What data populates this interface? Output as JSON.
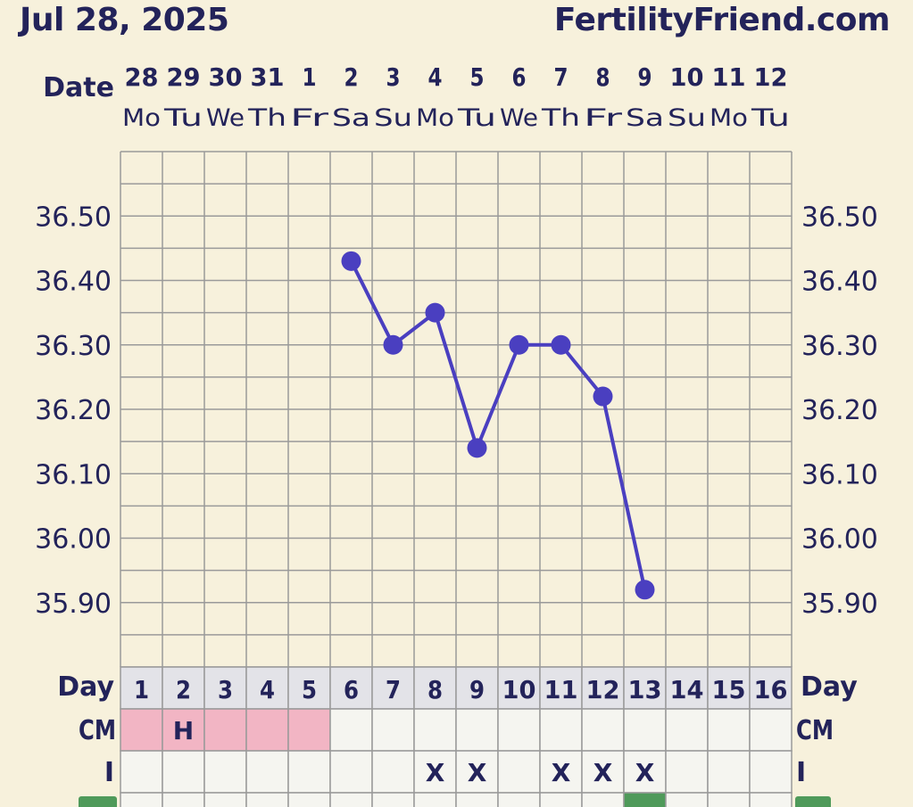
{
  "header": {
    "date": "Jul 28, 2025",
    "site": "FertilityFriend.com"
  },
  "chart_data": {
    "type": "line",
    "title": "",
    "date_label": "Date",
    "dates": [
      "28",
      "29",
      "30",
      "31",
      "1",
      "2",
      "3",
      "4",
      "5",
      "6",
      "7",
      "8",
      "9",
      "10",
      "11",
      "12"
    ],
    "weekdays": [
      "Mo",
      "Tu",
      "We",
      "Th",
      "Fr",
      "Sa",
      "Su",
      "Mo",
      "Tu",
      "We",
      "Th",
      "Fr",
      "Sa",
      "Su",
      "Mo",
      "Tu"
    ],
    "ylim": [
      35.8,
      36.6
    ],
    "yticks": [
      "36.50",
      "36.40",
      "36.30",
      "36.20",
      "36.10",
      "36.00",
      "35.90"
    ],
    "series": [
      {
        "values": [
          null,
          null,
          null,
          null,
          null,
          36.43,
          36.3,
          36.35,
          36.14,
          36.3,
          36.3,
          36.22,
          35.92,
          null,
          null,
          null
        ],
        "color": "#4a3fc0"
      }
    ],
    "grid": true,
    "day_label": "Day",
    "days": [
      "1",
      "2",
      "3",
      "4",
      "5",
      "6",
      "7",
      "8",
      "9",
      "10",
      "11",
      "12",
      "13",
      "14",
      "15",
      "16"
    ],
    "cm_label": "CM",
    "cm": [
      "",
      "H",
      "",
      "",
      "",
      "",
      "",
      "",
      "",
      "",
      "",
      "",
      "",
      "",
      "",
      ""
    ],
    "cm_highlight": [
      true,
      true,
      true,
      true,
      true,
      false,
      false,
      false,
      false,
      false,
      false,
      false,
      false,
      false,
      false,
      false
    ],
    "i_label": "I",
    "intercourse": [
      "",
      "",
      "",
      "",
      "",
      "",
      "",
      "X",
      "X",
      "",
      "X",
      "X",
      "X",
      "",
      "",
      ""
    ],
    "colors": {
      "background": "#f7f1dc",
      "text": "#23235a",
      "grid": "#9a9a9a",
      "line": "#4a3fc0",
      "period": "#f2b5c4",
      "day_row": "#e3e3e8",
      "cell": "#f5f5f0",
      "partial_marker": "#4f9a5a"
    }
  }
}
